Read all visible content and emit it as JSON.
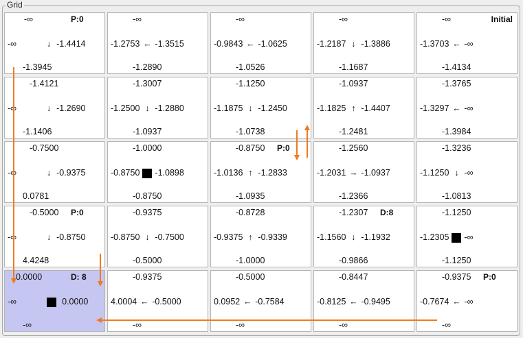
{
  "group_title": "Grid",
  "rows": [
    [
      {
        "top": "-∞",
        "tag": "P:0",
        "left": "-∞",
        "arrow": "↓",
        "right": "-1.4414",
        "bottom": "-1.3945"
      },
      {
        "top": "-∞",
        "tag": "",
        "left": "-1.2753",
        "arrow": "←",
        "right": "-1.3515",
        "bottom": "-1.2890"
      },
      {
        "top": "-∞",
        "tag": "",
        "left": "-0.9843",
        "arrow": "←",
        "right": "-1.0625",
        "bottom": "-1.0526"
      },
      {
        "top": "-∞",
        "tag": "",
        "left": "-1.2187",
        "arrow": "↓",
        "right": "-1.3886",
        "bottom": "-1.1687"
      },
      {
        "top": "-∞",
        "tag": "Initial",
        "left": "-1.3703",
        "arrow": "←",
        "right": "-∞",
        "bottom": "-1.4134"
      }
    ],
    [
      {
        "top": "-1.4121",
        "tag": "",
        "left": "-∞",
        "arrow": "↓",
        "right": "-1.2690",
        "bottom": "-1.1406"
      },
      {
        "top": "-1.3007",
        "tag": "",
        "left": "-1.2500",
        "arrow": "↓",
        "right": "-1.2880",
        "bottom": "-1.0937"
      },
      {
        "top": "-1.1250",
        "tag": "",
        "left": "-1.1875",
        "arrow": "↓",
        "right": "-1.2450",
        "bottom": "-1.0738"
      },
      {
        "top": "-1.0937",
        "tag": "",
        "left": "-1.1825",
        "arrow": "↑",
        "right": "-1.4407",
        "bottom": "-1.2481"
      },
      {
        "top": "-1.3765",
        "tag": "",
        "left": "-1.3297",
        "arrow": "←",
        "right": "-∞",
        "bottom": "-1.3984"
      }
    ],
    [
      {
        "top": "-0.7500",
        "tag": "",
        "left": "-∞",
        "arrow": "↓",
        "right": "-0.9375",
        "bottom": "0.0781"
      },
      {
        "top": "-1.0000",
        "tag": "",
        "left": "-0.8750",
        "arrow": "■",
        "right": "-1.0898",
        "bottom": "-0.8750"
      },
      {
        "top": "-0.8750",
        "tag": "P:0",
        "left": "-1.0136",
        "arrow": "↑",
        "right": "-1.2833",
        "bottom": "-1.0935"
      },
      {
        "top": "-1.2560",
        "tag": "",
        "left": "-1.2031",
        "arrow": "→",
        "right": "-1.0937",
        "bottom": "-1.2366"
      },
      {
        "top": "-1.3236",
        "tag": "",
        "left": "-1.1250",
        "arrow": "↓",
        "right": "-∞",
        "bottom": "-1.0813"
      }
    ],
    [
      {
        "top": "-0.5000",
        "tag": "P:0",
        "left": "-∞",
        "arrow": "↓",
        "right": "-0.8750",
        "bottom": "4.4248"
      },
      {
        "top": "-0.9375",
        "tag": "",
        "left": "-0.8750",
        "arrow": "↓",
        "right": "-0.7500",
        "bottom": "-0.5000"
      },
      {
        "top": "-0.8728",
        "tag": "",
        "left": "-0.9375",
        "arrow": "↑",
        "right": "-0.9339",
        "bottom": "-1.0000"
      },
      {
        "top": "-1.2307",
        "tag": "D:8",
        "left": "-1.1560",
        "arrow": "↓",
        "right": "-1.1932",
        "bottom": "-0.9866"
      },
      {
        "top": "-1.1250",
        "tag": "",
        "left": "-1.2305",
        "arrow": "■",
        "right": "-∞",
        "bottom": "-1.1250"
      }
    ],
    [
      {
        "top": "0.0000",
        "tag": "D: 8",
        "left": "-∞",
        "arrow": "■",
        "right": "0.0000",
        "bottom": "-∞",
        "highlight": true
      },
      {
        "top": "-0.9375",
        "tag": "",
        "left": "4.0004",
        "arrow": "←",
        "right": "-0.5000",
        "bottom": "-∞"
      },
      {
        "top": "-0.5000",
        "tag": "",
        "left": "0.0952",
        "arrow": "←",
        "right": "-0.7584",
        "bottom": "-∞"
      },
      {
        "top": "-0.8447",
        "tag": "",
        "left": "-0.8125",
        "arrow": "←",
        "right": "-0.9495",
        "bottom": "-∞"
      },
      {
        "top": "-0.9375",
        "tag": "P:0",
        "left": "-0.7674",
        "arrow": "←",
        "right": "-∞",
        "bottom": "-∞"
      }
    ]
  ],
  "overlay_color": "#f07a1e"
}
